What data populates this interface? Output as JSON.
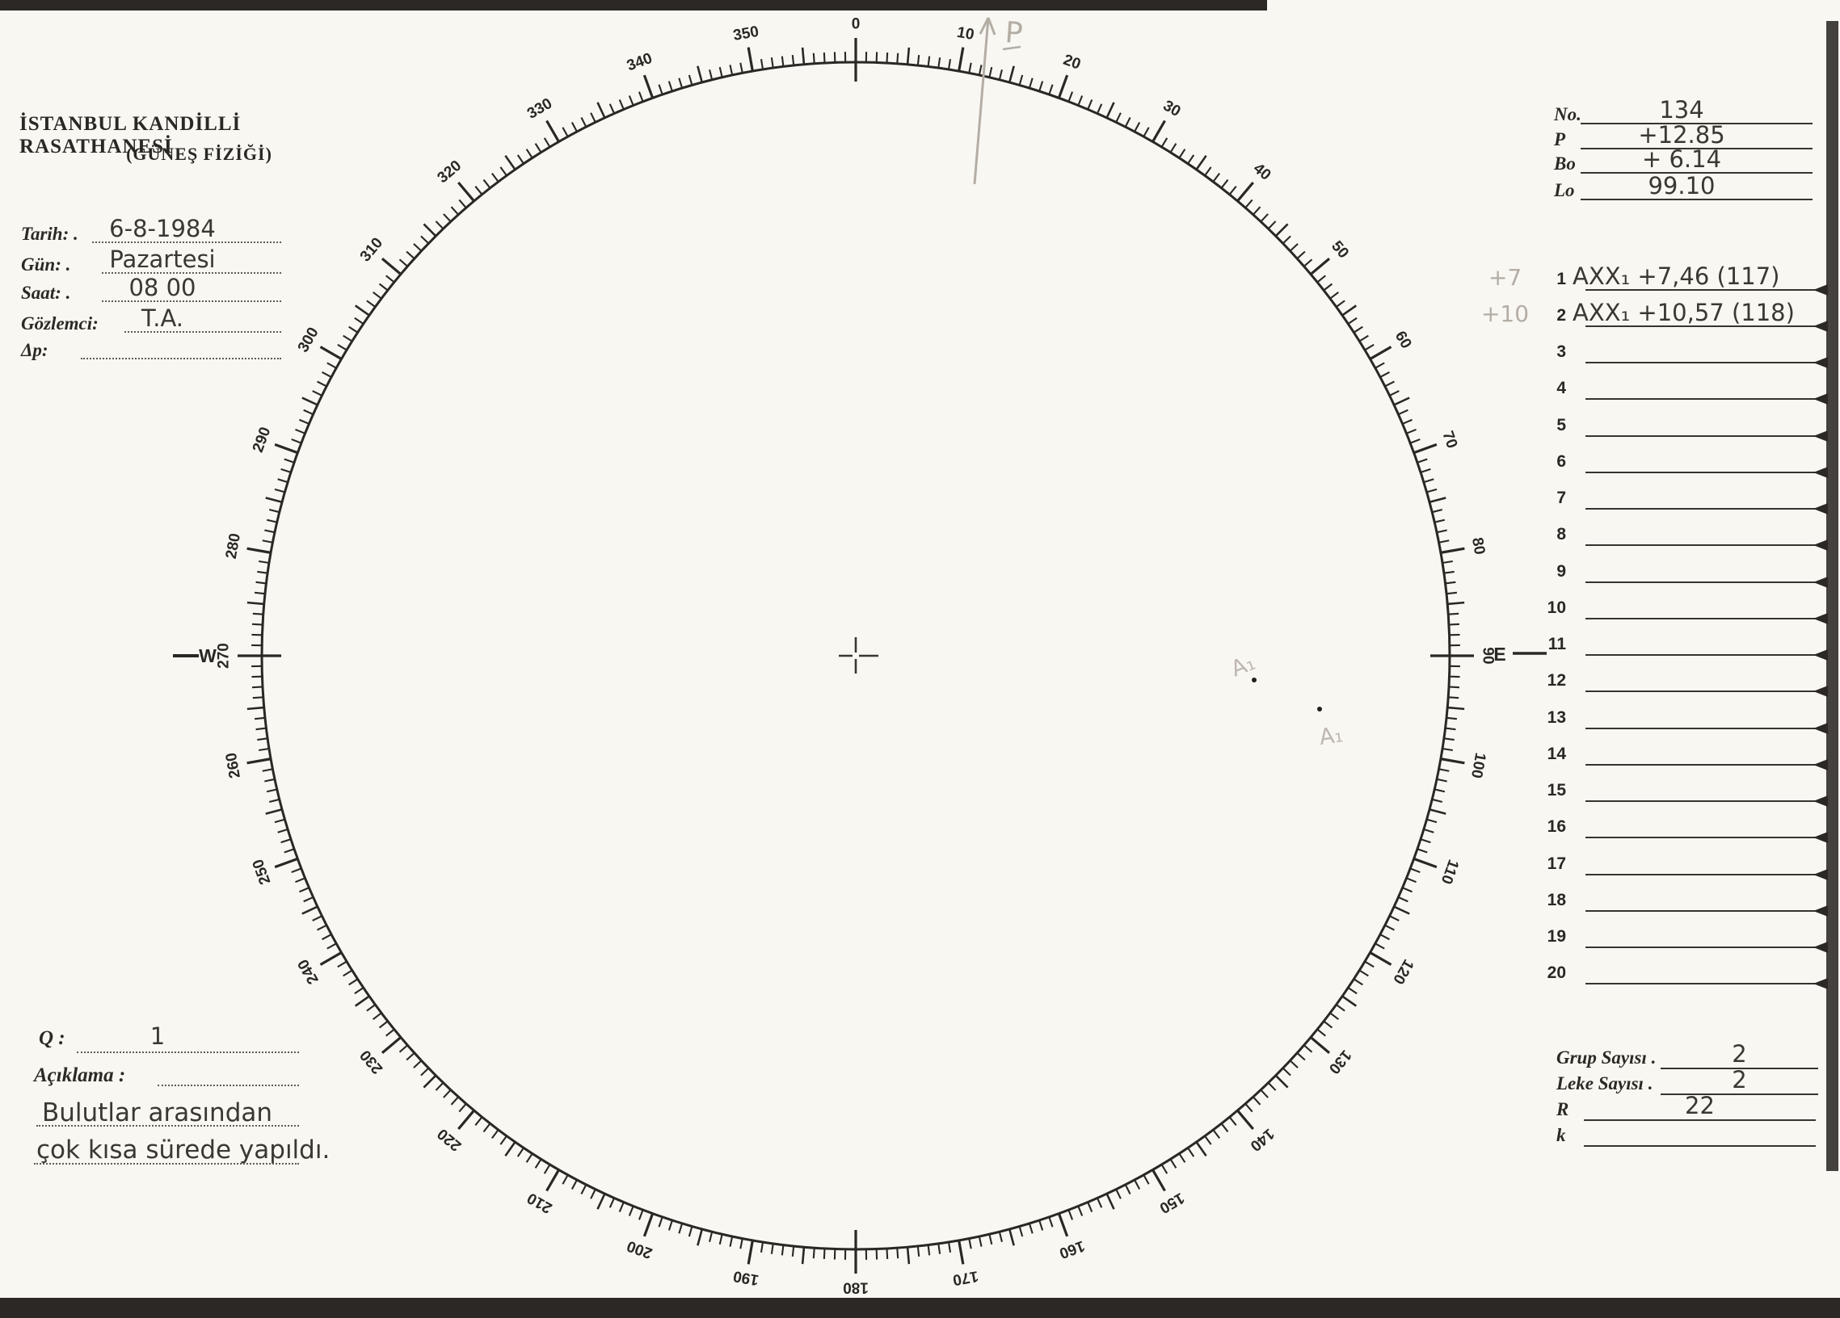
{
  "colors": {
    "ink": "#2a2724",
    "pencil": "#b3ada4",
    "spot": "#22201d",
    "paper": "#f9f7f2"
  },
  "header": {
    "line1": "İSTANBUL KANDİLLİ RASATHANESİ",
    "line2": "(GÜNEŞ FİZİĞİ)"
  },
  "observation_form": {
    "fields": [
      {
        "id": "tarih",
        "label": "Tarih: .",
        "value": "6-8-1984"
      },
      {
        "id": "gun",
        "label": "Gün: .",
        "value": "Pazartesi"
      },
      {
        "id": "saat",
        "label": "Saat: .",
        "value": "08 00"
      },
      {
        "id": "gozlemci",
        "label": "Gözlemci:",
        "value": "T.A."
      },
      {
        "id": "delta-p",
        "label": "Δp:",
        "value": ""
      }
    ]
  },
  "quality_notes": {
    "q_label": "Q :",
    "q_value": "1",
    "aciklama_label": "Açıklama :",
    "note_line1": "Bulutlar arasından",
    "note_line2": "çok kısa sürede yapıldı."
  },
  "ephemeris": {
    "rows": [
      {
        "label": "No.",
        "value": "134"
      },
      {
        "label": "P",
        "value": "+12.85"
      },
      {
        "label": "Bo",
        "value": "+ 6.14"
      },
      {
        "label": "Lo",
        "value": "99.10"
      }
    ]
  },
  "measurements": {
    "rows": [
      {
        "num": "1",
        "pencil": "+7",
        "entry": "AXX₁ +7,46 (117)"
      },
      {
        "num": "2",
        "pencil": "+10",
        "entry": "AXX₁ +10,57 (118)"
      },
      {
        "num": "3",
        "pencil": "",
        "entry": ""
      },
      {
        "num": "4",
        "pencil": "",
        "entry": ""
      },
      {
        "num": "5",
        "pencil": "",
        "entry": ""
      },
      {
        "num": "6",
        "pencil": "",
        "entry": ""
      },
      {
        "num": "7",
        "pencil": "",
        "entry": ""
      },
      {
        "num": "8",
        "pencil": "",
        "entry": ""
      },
      {
        "num": "9",
        "pencil": "",
        "entry": ""
      },
      {
        "num": "10",
        "pencil": "",
        "entry": ""
      },
      {
        "num": "11",
        "pencil": "",
        "entry": ""
      },
      {
        "num": "12",
        "pencil": "",
        "entry": ""
      },
      {
        "num": "13",
        "pencil": "",
        "entry": ""
      },
      {
        "num": "14",
        "pencil": "",
        "entry": ""
      },
      {
        "num": "15",
        "pencil": "",
        "entry": ""
      },
      {
        "num": "16",
        "pencil": "",
        "entry": ""
      },
      {
        "num": "17",
        "pencil": "",
        "entry": ""
      },
      {
        "num": "18",
        "pencil": "",
        "entry": ""
      },
      {
        "num": "19",
        "pencil": "",
        "entry": ""
      },
      {
        "num": "20",
        "pencil": "",
        "entry": ""
      }
    ]
  },
  "summary": {
    "rows": [
      {
        "label": "Grup Sayısı .",
        "value": "2"
      },
      {
        "label": "Leke Sayısı .",
        "value": "2"
      },
      {
        "label": "R",
        "value": "22"
      },
      {
        "label": "k",
        "value": ""
      }
    ]
  },
  "dial": {
    "degree_labels": [
      "0",
      "10",
      "20",
      "30",
      "40",
      "50",
      "60",
      "70",
      "80",
      "90",
      "100",
      "110",
      "120",
      "130",
      "140",
      "150",
      "160",
      "170",
      "180",
      "190",
      "200",
      "210",
      "220",
      "230",
      "240",
      "250",
      "260",
      "270",
      "280",
      "290",
      "300",
      "310",
      "320",
      "330",
      "340",
      "350"
    ],
    "west_label": "W",
    "east_label": "E",
    "pencil_p_label": "P",
    "sunspot_labels": [
      "A₁",
      "A₁"
    ]
  }
}
